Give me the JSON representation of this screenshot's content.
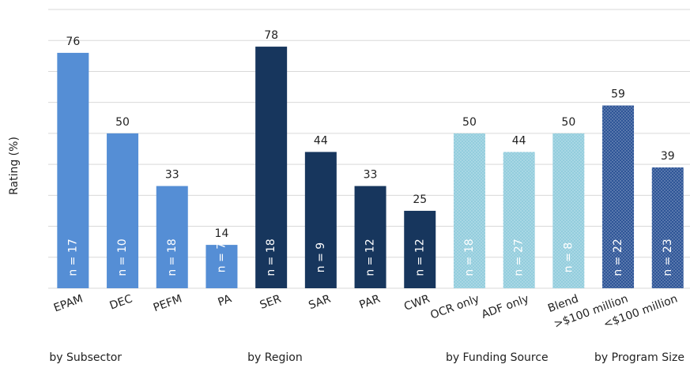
{
  "chart_data": {
    "type": "bar",
    "y_label": "Rating (%)",
    "ylim": [
      0,
      90
    ],
    "yticks": [
      0,
      10,
      20,
      30,
      40,
      50,
      60,
      70,
      80,
      90
    ],
    "grid": true,
    "groups": [
      {
        "label": "by Subsector",
        "color": "#558ed5",
        "pattern": false,
        "categories": [
          "EPAM",
          "DEC",
          "PEFM",
          "PA"
        ],
        "values": [
          76,
          50,
          33,
          14
        ],
        "n_labels": [
          "n = 17",
          "n = 10",
          "n = 18",
          "n = 7"
        ]
      },
      {
        "label": "by Region",
        "color": "#17365d",
        "pattern": false,
        "categories": [
          "SER",
          "SAR",
          "PAR",
          "CWR"
        ],
        "values": [
          78,
          44,
          33,
          25
        ],
        "n_labels": [
          "n = 18",
          "n = 9",
          "n = 12",
          "n = 12"
        ]
      },
      {
        "label": "by Funding Source",
        "color": "#93cddd",
        "pattern": true,
        "categories": [
          "OCR only",
          "ADF only",
          "Blend"
        ],
        "values": [
          50,
          44,
          50
        ],
        "n_labels": [
          "n = 18",
          "n = 27",
          "n = 8"
        ]
      },
      {
        "label": "by Program Size",
        "color": "#2e5597",
        "pattern": true,
        "categories": [
          ">$100 million",
          "<$100 million"
        ],
        "values": [
          59,
          39
        ],
        "n_labels": [
          "n = 22",
          "n = 23"
        ]
      }
    ]
  }
}
